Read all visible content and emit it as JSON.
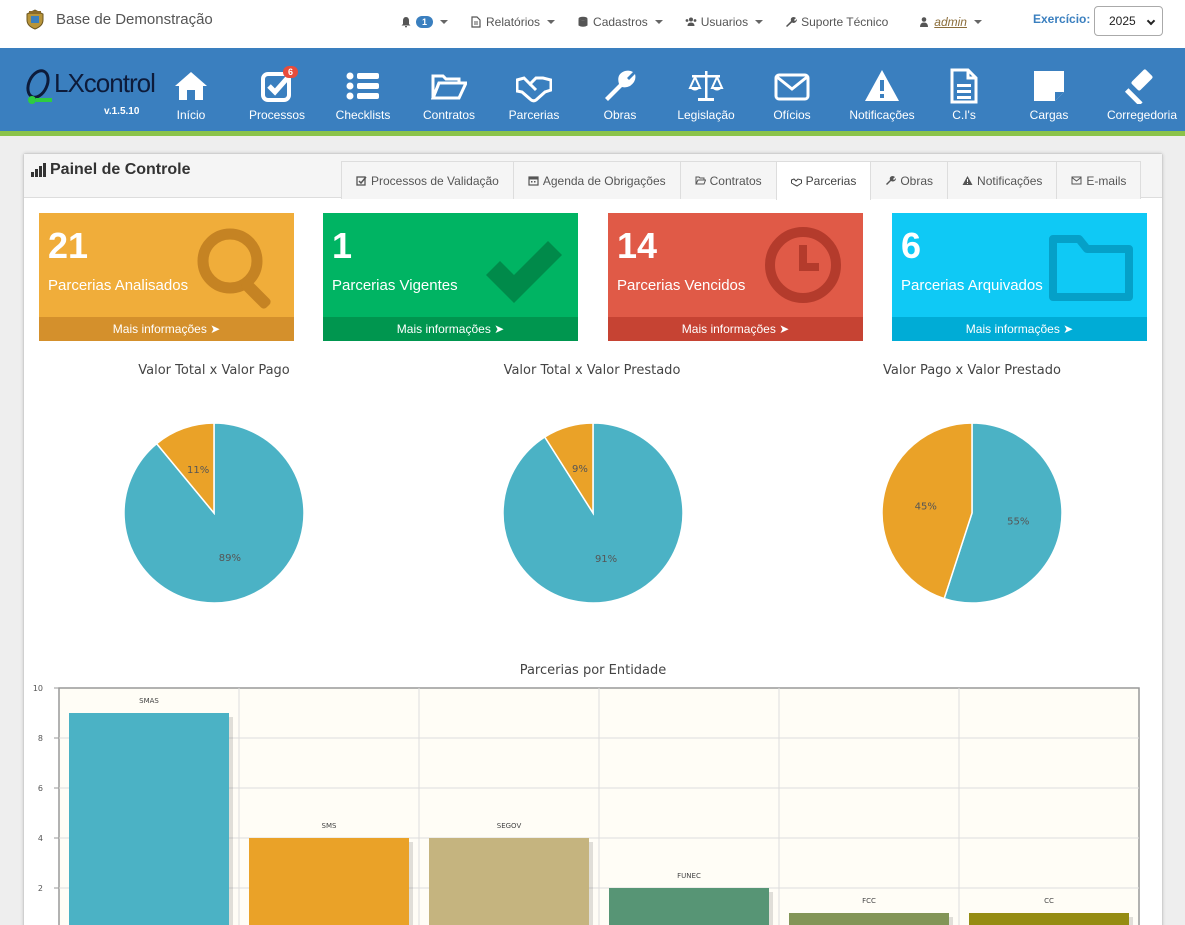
{
  "topbar": {
    "brand": "Base de Demonstração",
    "notif_count": "1",
    "menu": [
      "Relatórios",
      "Cadastros",
      "Usuarios",
      "Suporte Técnico"
    ],
    "user": "admin",
    "exercicio_label": "Exercício:",
    "year": "2025"
  },
  "mainnav": {
    "logo": "LXcontrol",
    "version": "v.1.5.10",
    "items": [
      {
        "label": "Início",
        "icon": "home-icon"
      },
      {
        "label": "Processos",
        "icon": "checkbox-icon",
        "badge": "6"
      },
      {
        "label": "Checklists",
        "icon": "list-icon"
      },
      {
        "label": "Contratos",
        "icon": "folder-open-icon"
      },
      {
        "label": "Parcerias",
        "icon": "handshake-icon"
      },
      {
        "label": "Obras",
        "icon": "wrench-icon"
      },
      {
        "label": "Legislação",
        "icon": "scale-icon"
      },
      {
        "label": "Ofícios",
        "icon": "envelope-icon"
      },
      {
        "label": "Notificações",
        "icon": "warning-icon"
      },
      {
        "label": "C.I's",
        "icon": "document-icon"
      },
      {
        "label": "Cargas",
        "icon": "sticky-note-icon"
      },
      {
        "label": "Corregedoria",
        "icon": "gavel-icon"
      }
    ]
  },
  "panel": {
    "title": "Painel de Controle",
    "tabs": [
      "Processos de Validação",
      "Agenda de Obrigações",
      "Contratos",
      "Parcerias",
      "Obras",
      "Notificações",
      "E-mails"
    ],
    "active_tab": "Parcerias"
  },
  "stats": [
    {
      "value": "21",
      "label": "Parcerias Analisados",
      "more": "Mais informações",
      "color": "#f0ad3a"
    },
    {
      "value": "1",
      "label": "Parcerias Vigentes",
      "more": "Mais informações",
      "color": "#00a65a"
    },
    {
      "value": "14",
      "label": "Parcerias Vencidos",
      "more": "Mais informações",
      "color": "#dd4b39"
    },
    {
      "value": "6",
      "label": "Parcerias Arquivados",
      "more": "Mais informações",
      "color": "#00c0ef"
    }
  ],
  "chart_data": [
    {
      "type": "pie",
      "title": "Valor Total x Valor Pago",
      "slices": [
        {
          "label": "89%",
          "value": 89,
          "color": "#4bb2c5"
        },
        {
          "label": "11%",
          "value": 11,
          "color": "#eaa228"
        }
      ]
    },
    {
      "type": "pie",
      "title": "Valor Total x Valor Prestado",
      "slices": [
        {
          "label": "91%",
          "value": 91,
          "color": "#4bb2c5"
        },
        {
          "label": "9%",
          "value": 9,
          "color": "#eaa228"
        }
      ]
    },
    {
      "type": "pie",
      "title": "Valor Pago x Valor Prestado",
      "slices": [
        {
          "label": "55%",
          "value": 55,
          "color": "#4bb2c5"
        },
        {
          "label": "45%",
          "value": 45,
          "color": "#eaa228"
        }
      ]
    },
    {
      "type": "bar",
      "title": "Parcerias por Entidade",
      "categories": [
        "SMAS",
        "SMS",
        "SEGOV",
        "FUNEC",
        "FCC",
        "CC"
      ],
      "values": [
        9,
        4,
        4,
        2,
        1,
        1
      ],
      "colors": [
        "#4bb2c5",
        "#eaa228",
        "#c5b47f",
        "#579575",
        "#839557",
        "#958c12"
      ],
      "ylim": [
        0,
        10
      ],
      "yticks": [
        "10",
        "8",
        "6",
        "4",
        "2"
      ],
      "grid": true
    }
  ]
}
